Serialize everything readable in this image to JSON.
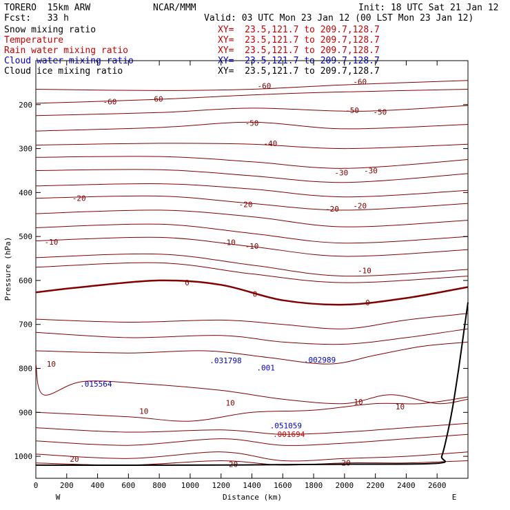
{
  "header": {
    "model": "TORERO  15km ARW",
    "org": "NCAR/MMM",
    "init": "Init: 18 UTC Sat 21 Jan 12",
    "fcst": "Fcst:   33 h",
    "valid": "Valid: 03 UTC Mon 23 Jan 12 (00 LST Mon 23 Jan 12)"
  },
  "fields": [
    {
      "name": "Snow mixing ratio",
      "xy": "XY=  23.5,121.7 to 209.7,128.7",
      "color": "#000000",
      "xy_color": "#cc0000"
    },
    {
      "name": "Temperature",
      "xy": "XY=  23.5,121.7 to 209.7,128.7",
      "color": "#cc0000",
      "xy_color": "#cc0000"
    },
    {
      "name": "Rain water mixing ratio",
      "xy": "XY=  23.5,121.7 to 209.7,128.7",
      "color": "#cc0000",
      "xy_color": "#cc0000"
    },
    {
      "name": "Cloud water mixing ratio",
      "xy": "XY=  23.5,121.7 to 209.7,128.7",
      "color": "#0000cc",
      "xy_color": "#0000cc"
    },
    {
      "name": "Cloud ice mixing ratio",
      "xy": "XY=  23.5,121.7 to 209.7,128.7",
      "color": "#000000",
      "xy_color": "#000000"
    }
  ],
  "chart_data": {
    "type": "line",
    "title": "",
    "xlabel": "Distance (km)",
    "ylabel": "Pressure (hPa)",
    "xlim": [
      0,
      2800
    ],
    "ylim": [
      1050,
      100
    ],
    "x_ticks": [
      0,
      200,
      400,
      600,
      800,
      1000,
      1200,
      1400,
      1600,
      1800,
      2000,
      2200,
      2400,
      2600
    ],
    "y_ticks": [
      200,
      300,
      400,
      500,
      600,
      700,
      800,
      900,
      1000
    ],
    "x_end_labels": {
      "left": "W",
      "right": "E"
    },
    "colors": {
      "temperature": "#800000",
      "cloud_water": "#0000cc",
      "rain": "#cc0000",
      "terrain": "#000000"
    },
    "temperature_contours": [
      {
        "level": -60,
        "x": [
          0,
          800,
          1400,
          2000,
          2800
        ],
        "y": [
          165,
          168,
          165,
          155,
          145
        ]
      },
      {
        "level": -60,
        "x": [
          0,
          800,
          1400,
          1900,
          2800
        ],
        "y": [
          197,
          188,
          178,
          172,
          165
        ]
      },
      {
        "level": -50,
        "x": [
          0,
          800,
          1400,
          2100,
          2800
        ],
        "y": [
          225,
          218,
          208,
          215,
          202
        ]
      },
      {
        "level": -50,
        "x": [
          0,
          800,
          1400,
          2000,
          2800
        ],
        "y": [
          260,
          252,
          240,
          255,
          245
        ]
      },
      {
        "level": -40,
        "x": [
          0,
          800,
          1400,
          2000,
          2800
        ],
        "y": [
          292,
          288,
          290,
          300,
          290
        ]
      },
      {
        "level": -30,
        "x": [
          0,
          800,
          1400,
          2000,
          2800
        ],
        "y": [
          320,
          318,
          330,
          345,
          325
        ]
      },
      {
        "level": -30,
        "x": [
          0,
          800,
          1400,
          2000,
          2800
        ],
        "y": [
          350,
          348,
          362,
          377,
          357
        ]
      },
      {
        "level": -20,
        "x": [
          0,
          800,
          1400,
          2000,
          2800
        ],
        "y": [
          385,
          380,
          392,
          410,
          395
        ]
      },
      {
        "level": -20,
        "x": [
          0,
          800,
          1400,
          2000,
          2800
        ],
        "y": [
          413,
          408,
          425,
          440,
          425
        ]
      },
      {
        "level": -20,
        "x": [
          0,
          800,
          1400,
          2000,
          2800
        ],
        "y": [
          448,
          440,
          455,
          478,
          463
        ]
      },
      {
        "level": -10,
        "x": [
          0,
          800,
          1400,
          2000,
          2800
        ],
        "y": [
          480,
          472,
          493,
          515,
          500
        ]
      },
      {
        "level": -10,
        "x": [
          0,
          800,
          1400,
          2000,
          2800
        ],
        "y": [
          510,
          502,
          523,
          545,
          530
        ]
      },
      {
        "level": -10,
        "x": [
          0,
          800,
          1400,
          2000,
          2800
        ],
        "y": [
          548,
          540,
          565,
          590,
          575
        ]
      },
      {
        "level": -10,
        "x": [
          0,
          800,
          1400,
          2000,
          2800
        ],
        "y": [
          570,
          560,
          585,
          605,
          590
        ]
      },
      {
        "level": 0,
        "x": [
          0,
          300,
          800,
          1200,
          1600,
          2000,
          2400,
          2800
        ],
        "y": [
          627,
          615,
          600,
          610,
          645,
          655,
          640,
          615
        ]
      },
      {
        "level": 10,
        "x": [
          0,
          600,
          1200,
          1600,
          2000,
          2400,
          2800
        ],
        "y": [
          688,
          695,
          690,
          700,
          710,
          690,
          675
        ]
      },
      {
        "level": 10,
        "x": [
          0,
          600,
          1200,
          1600,
          2000,
          2400,
          2800
        ],
        "y": [
          718,
          730,
          725,
          740,
          745,
          730,
          710
        ]
      },
      {
        "level": 10,
        "x": [
          0,
          600,
          1100,
          1500,
          1900,
          2200,
          2500,
          2800
        ],
        "y": [
          760,
          765,
          760,
          775,
          790,
          770,
          750,
          740
        ]
      },
      {
        "level": 10,
        "x": [
          0,
          50,
          300,
          700,
          1200,
          1600,
          2000,
          2300,
          2600,
          2800
        ],
        "y": [
          790,
          860,
          830,
          835,
          850,
          870,
          880,
          860,
          880,
          870
        ]
      },
      {
        "level": 10,
        "x": [
          0,
          600,
          1000,
          1400,
          1800,
          2200,
          2500,
          2800
        ],
        "y": [
          900,
          910,
          920,
          900,
          895,
          880,
          880,
          865
        ]
      },
      {
        "level": 20,
        "x": [
          0,
          600,
          1200,
          1600,
          2000,
          2400,
          2800
        ],
        "y": [
          935,
          945,
          940,
          950,
          945,
          935,
          925
        ]
      },
      {
        "level": 20,
        "x": [
          0,
          600,
          1200,
          1600,
          2000,
          2400,
          2800
        ],
        "y": [
          965,
          975,
          960,
          975,
          970,
          960,
          950
        ]
      },
      {
        "level": 20,
        "x": [
          0,
          600,
          1200,
          1600,
          2000,
          2400,
          2800
        ],
        "y": [
          995,
          1005,
          990,
          1010,
          1005,
          1000,
          990
        ]
      },
      {
        "level": 20,
        "x": [
          0,
          600,
          1200,
          1600,
          2000,
          2400,
          2800
        ],
        "y": [
          1015,
          1020,
          1010,
          1020,
          1015,
          1015,
          1010
        ]
      }
    ],
    "contour_labels": [
      {
        "text": "-60",
        "x": 1480,
        "y": 157
      },
      {
        "text": "-60",
        "x": 2100,
        "y": 148
      },
      {
        "text": "-60",
        "x": 480,
        "y": 193
      },
      {
        "text": "-60",
        "x": 780,
        "y": 187
      },
      {
        "text": "-50",
        "x": 1400,
        "y": 242
      },
      {
        "text": "-50",
        "x": 2050,
        "y": 213
      },
      {
        "text": "-50",
        "x": 2230,
        "y": 217
      },
      {
        "text": "-40",
        "x": 1520,
        "y": 288
      },
      {
        "text": "-30",
        "x": 1980,
        "y": 355
      },
      {
        "text": "-30",
        "x": 2170,
        "y": 350
      },
      {
        "text": "-20",
        "x": 280,
        "y": 413
      },
      {
        "text": "-20",
        "x": 1360,
        "y": 427
      },
      {
        "text": "-20",
        "x": 1920,
        "y": 437
      },
      {
        "text": "-20",
        "x": 2100,
        "y": 430
      },
      {
        "text": "-10",
        "x": 100,
        "y": 512
      },
      {
        "text": "-10",
        "x": 1250,
        "y": 513
      },
      {
        "text": "-10",
        "x": 1400,
        "y": 522
      },
      {
        "text": "-10",
        "x": 2130,
        "y": 577
      },
      {
        "text": "0",
        "x": 980,
        "y": 605
      },
      {
        "text": "0",
        "x": 1420,
        "y": 631
      },
      {
        "text": "0",
        "x": 2150,
        "y": 650
      },
      {
        "text": "10",
        "x": 100,
        "y": 790
      },
      {
        "text": "10",
        "x": 1260,
        "y": 878
      },
      {
        "text": "10",
        "x": 2090,
        "y": 876
      },
      {
        "text": "10",
        "x": 2360,
        "y": 887
      },
      {
        "text": "10",
        "x": 700,
        "y": 897
      },
      {
        "text": "20",
        "x": 250,
        "y": 1006
      },
      {
        "text": "20",
        "x": 1280,
        "y": 1018
      },
      {
        "text": "20",
        "x": 2010,
        "y": 1015
      }
    ],
    "maxima": [
      {
        "field": "cloud_water",
        "text": ".015564",
        "x": 390,
        "y": 835
      },
      {
        "field": "cloud_water",
        "text": ".031798",
        "x": 1230,
        "y": 782
      },
      {
        "field": "cloud_water",
        "text": ".001",
        "x": 1490,
        "y": 798
      },
      {
        "field": "cloud_water",
        "text": ".002989",
        "x": 1840,
        "y": 780
      },
      {
        "field": "cloud_water",
        "text": ".051059",
        "x": 1620,
        "y": 930
      },
      {
        "field": "rain",
        "text": ".001694",
        "x": 1640,
        "y": 950
      }
    ],
    "terrain": {
      "x": [
        0,
        1000,
        2000,
        2600,
        2630,
        2660,
        2700,
        2740,
        2780,
        2800
      ],
      "y": [
        1020,
        1020,
        1018,
        1016,
        1000,
        960,
        890,
        800,
        700,
        650
      ]
    }
  }
}
